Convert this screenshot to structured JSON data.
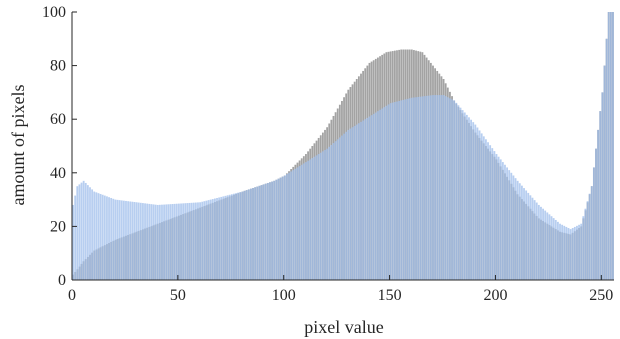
{
  "chart_data": {
    "type": "bar",
    "title": "",
    "xlabel": "pixel value",
    "ylabel": "amount of pixels",
    "xlim": [
      0,
      256
    ],
    "ylim": [
      0,
      100
    ],
    "xticks": [
      "0",
      "50",
      "100",
      "150",
      "200",
      "250"
    ],
    "yticks": [
      "0",
      "20",
      "40",
      "60",
      "80",
      "100"
    ],
    "grid": false,
    "legend": "none",
    "series": [
      {
        "color": "#a3a3a3",
        "x": [
          0,
          5,
          10,
          20,
          40,
          60,
          80,
          95,
          100,
          110,
          120,
          130,
          140,
          148,
          155,
          160,
          165,
          170,
          175,
          180,
          190,
          200,
          210,
          220,
          230,
          235,
          240,
          245,
          250,
          253,
          255
        ],
        "values": [
          2,
          7,
          11,
          15,
          21,
          27,
          33,
          37,
          39,
          47,
          57,
          71,
          81,
          85,
          86,
          86,
          85,
          80,
          75,
          67,
          55,
          45,
          32,
          23,
          18,
          17,
          20,
          35,
          70,
          100,
          100
        ]
      },
      {
        "color": "#9fbdeb",
        "x": [
          0,
          2,
          5,
          10,
          20,
          40,
          60,
          80,
          95,
          100,
          110,
          120,
          130,
          140,
          150,
          160,
          170,
          175,
          180,
          190,
          200,
          210,
          220,
          230,
          235,
          240,
          245,
          250,
          253,
          255
        ],
        "values": [
          28,
          35,
          37,
          33,
          30,
          28,
          29,
          33,
          37,
          39,
          44,
          49,
          56,
          61,
          66,
          68,
          69,
          69,
          67,
          58,
          47,
          37,
          28,
          21,
          19,
          21,
          35,
          70,
          100,
          100
        ]
      }
    ]
  }
}
